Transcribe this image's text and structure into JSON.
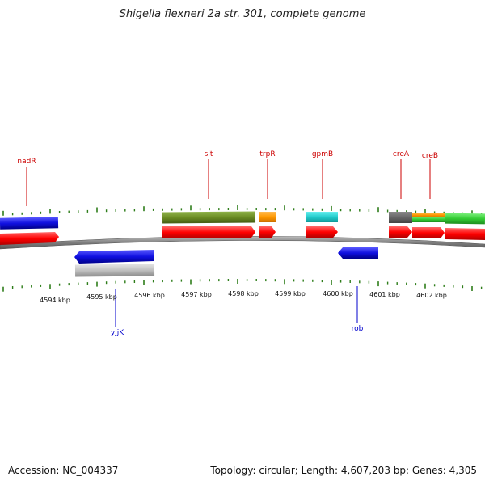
{
  "title": "Shigella flexneri 2a str. 301, complete genome",
  "footer": {
    "accession": "Accession: NC_004337",
    "summary": "Topology: circular; Length: 4,607,203 bp; Genes: 4,305"
  },
  "colors": {
    "gene_label_top": "#cc0000",
    "gene_label_bottom": "#0000cc",
    "tick": "#2e7d1a",
    "backbone": "#888888",
    "red": "#ff0000",
    "blue": "#1010e0",
    "olive": "#6b8c23",
    "orange": "#ff9900",
    "cyan": "#22cccc",
    "darkgray": "#666666",
    "green": "#33cc33",
    "lightgray": "#c0c0c0"
  },
  "kbp_labels": [
    "4594 kbp",
    "4595 kbp",
    "4596 kbp",
    "4597 kbp",
    "4598 kbp",
    "4599 kbp",
    "4600 kbp",
    "4601 kbp",
    "4602 kbp"
  ],
  "gene_labels_top": [
    {
      "name": "nadR"
    },
    {
      "name": "slt"
    },
    {
      "name": "trpR"
    },
    {
      "name": "gpmB"
    },
    {
      "name": "creA"
    },
    {
      "name": "creB"
    }
  ],
  "gene_labels_bottom": [
    {
      "name": "yjjK"
    },
    {
      "name": "rob"
    }
  ]
}
